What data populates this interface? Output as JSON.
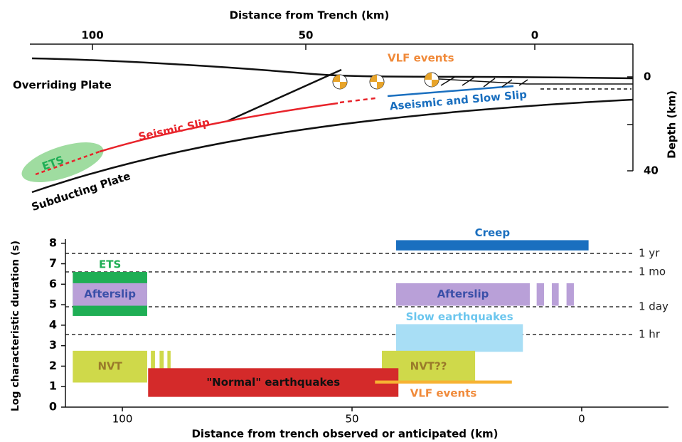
{
  "diagram": {
    "x_axis_title": "Distance from Trench (km)",
    "x_ticks": [
      "100",
      "50",
      "0"
    ],
    "y_axis_title": "Depth (km)",
    "y_ticks": [
      "0",
      "40"
    ],
    "labels": {
      "overriding": "Overriding Plate",
      "vlf": "VLF events",
      "seismic": "Seismic Slip",
      "aseismic": "Aseismic and Slow Slip",
      "ets": "ETS",
      "subducting": "Subducting Plate"
    }
  },
  "chart_data": {
    "type": "range",
    "x_label": "Distance from trench observed or anticipated (km)",
    "y_label": "Log characteristic duration (s)",
    "xlim": [
      112.4,
      -18.9
    ],
    "xticks": [
      100,
      50,
      0
    ],
    "ylim": [
      0,
      8.2
    ],
    "yticks": [
      0,
      1,
      2,
      3,
      4,
      5,
      6,
      7,
      8
    ],
    "reference_lines": [
      {
        "value": 7.5,
        "label": "1 yr"
      },
      {
        "value": 6.6,
        "label": "1 mo"
      },
      {
        "value": 4.9,
        "label": "1 day"
      },
      {
        "value": 3.55,
        "label": "1 hr"
      }
    ],
    "series": [
      {
        "name": "Creep",
        "color": "#1a6fbf",
        "label_color": "#1a6fbf",
        "ranges": [
          [
            40.4,
            -1.5,
            7.65,
            8.15
          ]
        ]
      },
      {
        "name": "ETS",
        "color": "#1fae55",
        "label_color": "#1fae55",
        "ranges": [
          [
            110.8,
            94.6,
            4.45,
            6.6
          ]
        ]
      },
      {
        "name": "Afterslip",
        "color": "#b9a0d8",
        "label_color": "#3a4fa8",
        "ranges": [
          [
            110.8,
            94.6,
            4.95,
            6.05
          ],
          [
            40.4,
            11.3,
            4.95,
            6.05
          ],
          [
            9.8,
            8.2,
            4.95,
            6.05
          ],
          [
            6.5,
            5.0,
            4.95,
            6.05
          ],
          [
            3.3,
            1.7,
            4.95,
            6.05
          ]
        ]
      },
      {
        "name": "Slow earthquakes",
        "color": "#a8def5",
        "label_color": "#6cc6ee",
        "ranges": [
          [
            40.4,
            12.8,
            2.7,
            4.05
          ]
        ]
      },
      {
        "name": "NVT",
        "color": "#cfd94a",
        "label_color": "#9a7a2a",
        "ranges": [
          [
            110.8,
            94.6,
            1.2,
            2.75
          ],
          [
            93.8,
            92.9,
            1.2,
            2.75
          ],
          [
            91.9,
            91.0,
            1.2,
            2.75
          ],
          [
            90.2,
            89.5,
            1.2,
            2.75
          ]
        ]
      },
      {
        "name": "NVT??",
        "color": "#cfd94a",
        "label_color": "#9a7a2a",
        "ranges": [
          [
            43.5,
            23.2,
            1.2,
            2.75
          ]
        ]
      },
      {
        "name": "\"Normal\" earthquakes",
        "color": "#d42a2a",
        "label_color": "#111111",
        "ranges": [
          [
            94.4,
            39.9,
            0.5,
            1.9
          ]
        ]
      },
      {
        "name": "VLF events",
        "color": "#f7b233",
        "label_color": "#f08a3a",
        "ranges": [
          [
            45.0,
            15.2,
            1.15,
            1.3
          ]
        ]
      }
    ]
  }
}
